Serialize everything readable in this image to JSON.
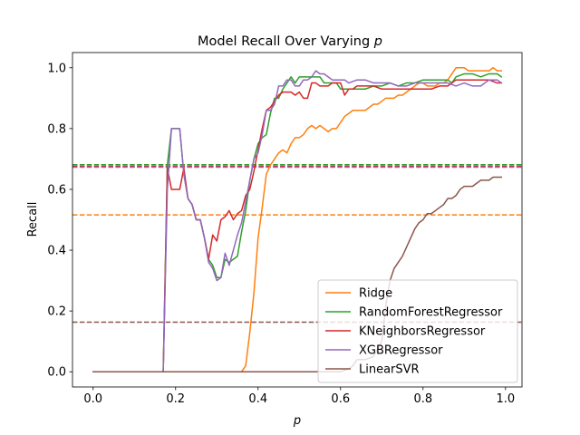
{
  "chart_data": {
    "type": "line",
    "title": "Model Recall Over Varying",
    "title_var": "p",
    "xlabel": "p",
    "ylabel": "Recall",
    "xlim": [
      -0.05,
      1.04
    ],
    "ylim": [
      -0.05,
      1.05
    ],
    "xticks": [
      "0.0",
      "0.2",
      "0.4",
      "0.6",
      "0.8",
      "1.0"
    ],
    "xtick_values": [
      0,
      0.2,
      0.4,
      0.6,
      0.8,
      1.0
    ],
    "yticks": [
      "0.0",
      "0.2",
      "0.4",
      "0.6",
      "0.8",
      "1.0"
    ],
    "ytick_values": [
      0,
      0.2,
      0.4,
      0.6,
      0.8,
      1.0
    ],
    "legend_position": "lower-right",
    "series": [
      {
        "name": "Ridge",
        "color": "#ff7f0e",
        "baseline": 0.516,
        "points": [
          [
            0,
            0
          ],
          [
            0.36,
            0
          ],
          [
            0.37,
            0.02
          ],
          [
            0.38,
            0.13
          ],
          [
            0.39,
            0.26
          ],
          [
            0.4,
            0.44
          ],
          [
            0.41,
            0.54
          ],
          [
            0.42,
            0.65
          ],
          [
            0.43,
            0.68
          ],
          [
            0.44,
            0.7
          ],
          [
            0.45,
            0.72
          ],
          [
            0.46,
            0.73
          ],
          [
            0.47,
            0.72
          ],
          [
            0.48,
            0.75
          ],
          [
            0.49,
            0.77
          ],
          [
            0.5,
            0.77
          ],
          [
            0.51,
            0.78
          ],
          [
            0.52,
            0.8
          ],
          [
            0.53,
            0.81
          ],
          [
            0.54,
            0.8
          ],
          [
            0.55,
            0.81
          ],
          [
            0.56,
            0.8
          ],
          [
            0.57,
            0.79
          ],
          [
            0.58,
            0.8
          ],
          [
            0.59,
            0.8
          ],
          [
            0.6,
            0.82
          ],
          [
            0.61,
            0.84
          ],
          [
            0.62,
            0.85
          ],
          [
            0.63,
            0.86
          ],
          [
            0.64,
            0.86
          ],
          [
            0.65,
            0.86
          ],
          [
            0.66,
            0.86
          ],
          [
            0.67,
            0.87
          ],
          [
            0.68,
            0.88
          ],
          [
            0.69,
            0.88
          ],
          [
            0.7,
            0.89
          ],
          [
            0.71,
            0.9
          ],
          [
            0.72,
            0.9
          ],
          [
            0.73,
            0.9
          ],
          [
            0.74,
            0.91
          ],
          [
            0.75,
            0.91
          ],
          [
            0.76,
            0.92
          ],
          [
            0.77,
            0.93
          ],
          [
            0.78,
            0.94
          ],
          [
            0.79,
            0.95
          ],
          [
            0.8,
            0.95
          ],
          [
            0.81,
            0.94
          ],
          [
            0.82,
            0.94
          ],
          [
            0.83,
            0.94
          ],
          [
            0.84,
            0.95
          ],
          [
            0.85,
            0.95
          ],
          [
            0.86,
            0.96
          ],
          [
            0.87,
            0.98
          ],
          [
            0.88,
            1.0
          ],
          [
            0.89,
            1.0
          ],
          [
            0.9,
            1.0
          ],
          [
            0.91,
            0.99
          ],
          [
            0.92,
            0.99
          ],
          [
            0.93,
            0.99
          ],
          [
            0.94,
            0.99
          ],
          [
            0.95,
            0.99
          ],
          [
            0.96,
            0.99
          ],
          [
            0.97,
            1.0
          ],
          [
            0.98,
            0.99
          ],
          [
            0.99,
            0.99
          ]
        ]
      },
      {
        "name": "RandomForestRegressor",
        "color": "#2ca02c",
        "baseline": 0.681,
        "points": [
          [
            0,
            0
          ],
          [
            0.17,
            0
          ],
          [
            0.18,
            0.68
          ],
          [
            0.19,
            0.8
          ],
          [
            0.2,
            0.8
          ],
          [
            0.21,
            0.8
          ],
          [
            0.22,
            0.65
          ],
          [
            0.23,
            0.57
          ],
          [
            0.24,
            0.55
          ],
          [
            0.25,
            0.5
          ],
          [
            0.26,
            0.5
          ],
          [
            0.27,
            0.44
          ],
          [
            0.28,
            0.37
          ],
          [
            0.29,
            0.35
          ],
          [
            0.3,
            0.31
          ],
          [
            0.31,
            0.31
          ],
          [
            0.32,
            0.37
          ],
          [
            0.33,
            0.36
          ],
          [
            0.34,
            0.37
          ],
          [
            0.35,
            0.38
          ],
          [
            0.36,
            0.46
          ],
          [
            0.37,
            0.53
          ],
          [
            0.38,
            0.63
          ],
          [
            0.39,
            0.7
          ],
          [
            0.4,
            0.75
          ],
          [
            0.41,
            0.77
          ],
          [
            0.42,
            0.78
          ],
          [
            0.43,
            0.85
          ],
          [
            0.44,
            0.9
          ],
          [
            0.45,
            0.9
          ],
          [
            0.46,
            0.93
          ],
          [
            0.47,
            0.95
          ],
          [
            0.48,
            0.97
          ],
          [
            0.49,
            0.95
          ],
          [
            0.5,
            0.97
          ],
          [
            0.51,
            0.97
          ],
          [
            0.52,
            0.97
          ],
          [
            0.53,
            0.97
          ],
          [
            0.54,
            0.97
          ],
          [
            0.55,
            0.97
          ],
          [
            0.56,
            0.95
          ],
          [
            0.57,
            0.95
          ],
          [
            0.58,
            0.95
          ],
          [
            0.59,
            0.95
          ],
          [
            0.6,
            0.93
          ],
          [
            0.62,
            0.93
          ],
          [
            0.64,
            0.93
          ],
          [
            0.66,
            0.93
          ],
          [
            0.68,
            0.94
          ],
          [
            0.7,
            0.94
          ],
          [
            0.72,
            0.95
          ],
          [
            0.74,
            0.94
          ],
          [
            0.76,
            0.95
          ],
          [
            0.78,
            0.95
          ],
          [
            0.8,
            0.96
          ],
          [
            0.82,
            0.96
          ],
          [
            0.84,
            0.96
          ],
          [
            0.86,
            0.96
          ],
          [
            0.87,
            0.95
          ],
          [
            0.88,
            0.97
          ],
          [
            0.9,
            0.98
          ],
          [
            0.92,
            0.98
          ],
          [
            0.94,
            0.97
          ],
          [
            0.96,
            0.98
          ],
          [
            0.98,
            0.98
          ],
          [
            0.99,
            0.97
          ]
        ]
      },
      {
        "name": "KNeighborsRegressor",
        "color": "#d62728",
        "baseline": 0.676,
        "points": [
          [
            0,
            0
          ],
          [
            0.17,
            0
          ],
          [
            0.18,
            0.67
          ],
          [
            0.19,
            0.6
          ],
          [
            0.2,
            0.6
          ],
          [
            0.21,
            0.6
          ],
          [
            0.22,
            0.67
          ],
          [
            0.23,
            0.57
          ],
          [
            0.24,
            0.55
          ],
          [
            0.25,
            0.5
          ],
          [
            0.26,
            0.5
          ],
          [
            0.27,
            0.44
          ],
          [
            0.28,
            0.37
          ],
          [
            0.29,
            0.45
          ],
          [
            0.3,
            0.43
          ],
          [
            0.31,
            0.5
          ],
          [
            0.32,
            0.51
          ],
          [
            0.33,
            0.53
          ],
          [
            0.34,
            0.5
          ],
          [
            0.35,
            0.52
          ],
          [
            0.36,
            0.53
          ],
          [
            0.37,
            0.58
          ],
          [
            0.38,
            0.6
          ],
          [
            0.39,
            0.66
          ],
          [
            0.4,
            0.73
          ],
          [
            0.41,
            0.8
          ],
          [
            0.42,
            0.86
          ],
          [
            0.43,
            0.87
          ],
          [
            0.44,
            0.89
          ],
          [
            0.45,
            0.91
          ],
          [
            0.46,
            0.92
          ],
          [
            0.47,
            0.92
          ],
          [
            0.48,
            0.92
          ],
          [
            0.49,
            0.91
          ],
          [
            0.5,
            0.92
          ],
          [
            0.51,
            0.9
          ],
          [
            0.52,
            0.9
          ],
          [
            0.53,
            0.95
          ],
          [
            0.54,
            0.95
          ],
          [
            0.55,
            0.94
          ],
          [
            0.56,
            0.94
          ],
          [
            0.57,
            0.94
          ],
          [
            0.58,
            0.95
          ],
          [
            0.59,
            0.95
          ],
          [
            0.6,
            0.95
          ],
          [
            0.61,
            0.91
          ],
          [
            0.62,
            0.93
          ],
          [
            0.63,
            0.93
          ],
          [
            0.64,
            0.94
          ],
          [
            0.66,
            0.94
          ],
          [
            0.68,
            0.94
          ],
          [
            0.7,
            0.93
          ],
          [
            0.72,
            0.93
          ],
          [
            0.74,
            0.93
          ],
          [
            0.76,
            0.93
          ],
          [
            0.78,
            0.93
          ],
          [
            0.8,
            0.93
          ],
          [
            0.82,
            0.93
          ],
          [
            0.84,
            0.94
          ],
          [
            0.86,
            0.94
          ],
          [
            0.88,
            0.96
          ],
          [
            0.9,
            0.96
          ],
          [
            0.92,
            0.96
          ],
          [
            0.94,
            0.96
          ],
          [
            0.96,
            0.96
          ],
          [
            0.98,
            0.95
          ],
          [
            0.99,
            0.95
          ]
        ]
      },
      {
        "name": "XGBRegressor",
        "color": "#9467bd",
        "baseline": 0.673,
        "points": [
          [
            0,
            0
          ],
          [
            0.17,
            0
          ],
          [
            0.18,
            0.6
          ],
          [
            0.19,
            0.8
          ],
          [
            0.2,
            0.8
          ],
          [
            0.21,
            0.8
          ],
          [
            0.22,
            0.65
          ],
          [
            0.23,
            0.57
          ],
          [
            0.24,
            0.55
          ],
          [
            0.25,
            0.5
          ],
          [
            0.26,
            0.5
          ],
          [
            0.27,
            0.44
          ],
          [
            0.28,
            0.36
          ],
          [
            0.29,
            0.34
          ],
          [
            0.3,
            0.3
          ],
          [
            0.31,
            0.31
          ],
          [
            0.32,
            0.39
          ],
          [
            0.33,
            0.35
          ],
          [
            0.34,
            0.4
          ],
          [
            0.35,
            0.45
          ],
          [
            0.36,
            0.49
          ],
          [
            0.37,
            0.56
          ],
          [
            0.38,
            0.63
          ],
          [
            0.39,
            0.7
          ],
          [
            0.4,
            0.72
          ],
          [
            0.41,
            0.78
          ],
          [
            0.42,
            0.86
          ],
          [
            0.43,
            0.86
          ],
          [
            0.44,
            0.88
          ],
          [
            0.45,
            0.94
          ],
          [
            0.46,
            0.94
          ],
          [
            0.47,
            0.96
          ],
          [
            0.48,
            0.96
          ],
          [
            0.49,
            0.94
          ],
          [
            0.5,
            0.94
          ],
          [
            0.51,
            0.96
          ],
          [
            0.52,
            0.96
          ],
          [
            0.53,
            0.97
          ],
          [
            0.54,
            0.99
          ],
          [
            0.55,
            0.98
          ],
          [
            0.56,
            0.98
          ],
          [
            0.57,
            0.97
          ],
          [
            0.58,
            0.96
          ],
          [
            0.59,
            0.96
          ],
          [
            0.6,
            0.96
          ],
          [
            0.61,
            0.96
          ],
          [
            0.62,
            0.95
          ],
          [
            0.64,
            0.96
          ],
          [
            0.66,
            0.96
          ],
          [
            0.68,
            0.95
          ],
          [
            0.7,
            0.95
          ],
          [
            0.72,
            0.95
          ],
          [
            0.74,
            0.94
          ],
          [
            0.76,
            0.94
          ],
          [
            0.78,
            0.95
          ],
          [
            0.8,
            0.95
          ],
          [
            0.82,
            0.95
          ],
          [
            0.84,
            0.95
          ],
          [
            0.86,
            0.95
          ],
          [
            0.88,
            0.94
          ],
          [
            0.9,
            0.95
          ],
          [
            0.92,
            0.94
          ],
          [
            0.94,
            0.94
          ],
          [
            0.96,
            0.96
          ],
          [
            0.98,
            0.96
          ],
          [
            0.99,
            0.95
          ]
        ]
      },
      {
        "name": "LinearSVR",
        "color": "#8c564b",
        "baseline": 0.163,
        "points": [
          [
            0,
            0
          ],
          [
            0.55,
            0
          ],
          [
            0.6,
            0
          ],
          [
            0.62,
            0.01
          ],
          [
            0.63,
            0.02
          ],
          [
            0.64,
            0.04
          ],
          [
            0.66,
            0.04
          ],
          [
            0.68,
            0.05
          ],
          [
            0.7,
            0.1
          ],
          [
            0.71,
            0.22
          ],
          [
            0.72,
            0.3
          ],
          [
            0.73,
            0.34
          ],
          [
            0.74,
            0.36
          ],
          [
            0.75,
            0.38
          ],
          [
            0.76,
            0.41
          ],
          [
            0.77,
            0.44
          ],
          [
            0.78,
            0.47
          ],
          [
            0.79,
            0.49
          ],
          [
            0.8,
            0.5
          ],
          [
            0.81,
            0.52
          ],
          [
            0.82,
            0.52
          ],
          [
            0.83,
            0.53
          ],
          [
            0.84,
            0.54
          ],
          [
            0.85,
            0.55
          ],
          [
            0.86,
            0.57
          ],
          [
            0.87,
            0.57
          ],
          [
            0.88,
            0.58
          ],
          [
            0.89,
            0.6
          ],
          [
            0.9,
            0.61
          ],
          [
            0.91,
            0.61
          ],
          [
            0.92,
            0.61
          ],
          [
            0.93,
            0.62
          ],
          [
            0.94,
            0.63
          ],
          [
            0.95,
            0.63
          ],
          [
            0.96,
            0.63
          ],
          [
            0.97,
            0.64
          ],
          [
            0.98,
            0.64
          ],
          [
            0.99,
            0.64
          ]
        ]
      }
    ]
  }
}
